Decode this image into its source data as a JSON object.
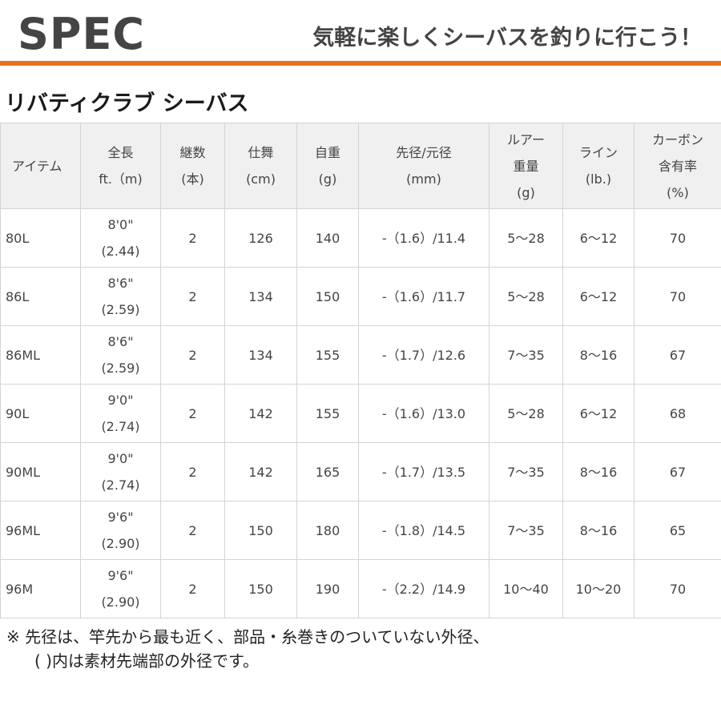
{
  "header": {
    "title": "SPEC",
    "tagline": "気軽に楽しくシーバスを釣りに行こう！",
    "accent_color": "#e8731e"
  },
  "product_name": "リバティクラブ シーバス",
  "table": {
    "headers": [
      [
        "アイテム"
      ],
      [
        "全長",
        "ft.（m)"
      ],
      [
        "継数",
        "(本)"
      ],
      [
        "仕舞",
        "(cm)"
      ],
      [
        "自重",
        "(g)"
      ],
      [
        "先径/元径",
        "(mm)"
      ],
      [
        "ルアー",
        "重量",
        "(g)"
      ],
      [
        "ライン",
        "(lb.)"
      ],
      [
        "カーボン",
        "含有率",
        "(%)"
      ]
    ],
    "rows": [
      {
        "item": "80L",
        "length_ft": "8'0\"",
        "length_m": "(2.44)",
        "pieces": "2",
        "closed": "126",
        "weight": "140",
        "diameter": "-（1.6）/11.4",
        "lure": "5～28",
        "line": "6～12",
        "carbon": "70"
      },
      {
        "item": "86L",
        "length_ft": "8'6\"",
        "length_m": "(2.59)",
        "pieces": "2",
        "closed": "134",
        "weight": "150",
        "diameter": "-（1.6）/11.7",
        "lure": "5～28",
        "line": "6～12",
        "carbon": "70"
      },
      {
        "item": "86ML",
        "length_ft": "8'6\"",
        "length_m": "(2.59)",
        "pieces": "2",
        "closed": "134",
        "weight": "155",
        "diameter": "-（1.7）/12.6",
        "lure": "7～35",
        "line": "8～16",
        "carbon": "67"
      },
      {
        "item": "90L",
        "length_ft": "9'0\"",
        "length_m": "(2.74)",
        "pieces": "2",
        "closed": "142",
        "weight": "155",
        "diameter": "-（1.6）/13.0",
        "lure": "5～28",
        "line": "6～12",
        "carbon": "68"
      },
      {
        "item": "90ML",
        "length_ft": "9'0\"",
        "length_m": "(2.74)",
        "pieces": "2",
        "closed": "142",
        "weight": "165",
        "diameter": "-（1.7）/13.5",
        "lure": "7～35",
        "line": "8～16",
        "carbon": "67"
      },
      {
        "item": "96ML",
        "length_ft": "9'6\"",
        "length_m": "(2.90)",
        "pieces": "2",
        "closed": "150",
        "weight": "180",
        "diameter": "-（1.8）/14.5",
        "lure": "7～35",
        "line": "8～16",
        "carbon": "65"
      },
      {
        "item": "96M",
        "length_ft": "9'6\"",
        "length_m": "(2.90)",
        "pieces": "2",
        "closed": "150",
        "weight": "190",
        "diameter": "-（2.2）/14.9",
        "lure": "10～40",
        "line": "10～20",
        "carbon": "70"
      }
    ]
  },
  "note": {
    "line1": "※ 先径は、竿先から最も近く、部品・糸巻きのついていない外径、",
    "line2": "( )内は素材先端部の外径です。"
  }
}
